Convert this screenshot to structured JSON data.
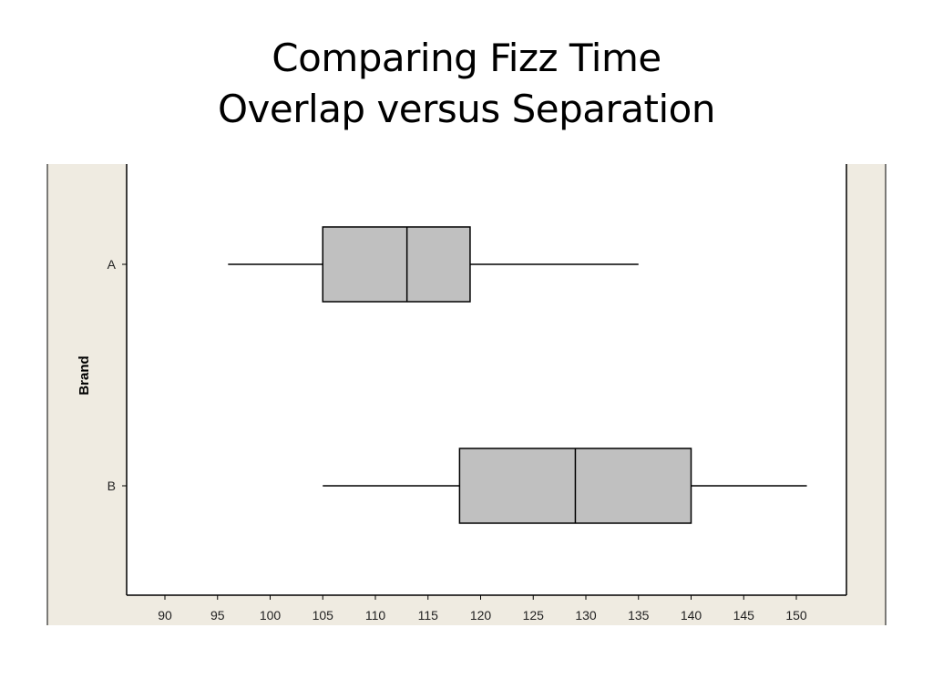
{
  "slide": {
    "title_line1": "Comparing Fizz Time",
    "title_line2": "Overlap versus Separation"
  },
  "chart_data": {
    "type": "boxplot",
    "orientation": "horizontal",
    "ylabel": "Brand",
    "xlabel": "",
    "xlim": [
      85,
      155
    ],
    "xticks": [
      90,
      95,
      100,
      105,
      110,
      115,
      120,
      125,
      130,
      135,
      140,
      145,
      150
    ],
    "categories": [
      "A",
      "B"
    ],
    "series": [
      {
        "category": "A",
        "min": 96,
        "q1": 105,
        "median": 113,
        "q3": 119,
        "max": 135
      },
      {
        "category": "B",
        "min": 105,
        "q1": 118,
        "median": 129,
        "q3": 140,
        "max": 151
      }
    ],
    "grid": false,
    "colors": {
      "box_fill": "#c0c0c0",
      "outline": "#000000",
      "frame_bg": "#efebe1",
      "plot_bg": "#ffffff"
    }
  }
}
